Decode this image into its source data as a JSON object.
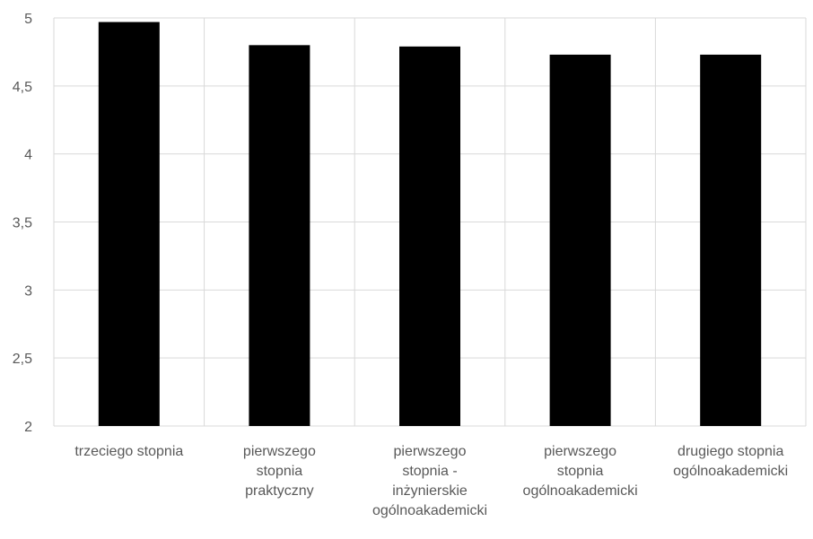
{
  "chart_data": {
    "type": "bar",
    "categories": [
      "trzeciego stopnia",
      "pierwszego stopnia praktyczny",
      "pierwszego stopnia - inżynierskie ogólnoakademicki",
      "pierwszego stopnia ogólnoakademicki",
      "drugiego stopnia ogólnoakademicki"
    ],
    "category_label_lines": [
      [
        "trzeciego stopnia"
      ],
      [
        "pierwszego",
        "stopnia",
        "praktyczny"
      ],
      [
        "pierwszego",
        "stopnia -",
        "inżynierskie",
        "ogólnoakademicki"
      ],
      [
        "pierwszego",
        "stopnia",
        "ogólnoakademicki"
      ],
      [
        "drugiego stopnia",
        "ogólnoakademicki"
      ]
    ],
    "values": [
      4.97,
      4.8,
      4.79,
      4.73,
      4.73
    ],
    "ylim": [
      2,
      5
    ],
    "yticks": [
      2,
      2.5,
      3,
      3.5,
      4,
      4.5,
      5
    ],
    "ytick_labels": [
      "2",
      "2,5",
      "3",
      "3,5",
      "4",
      "4,5",
      "5"
    ],
    "title": "",
    "xlabel": "",
    "ylabel": "",
    "grid": true,
    "legend": false,
    "bar_color": "#000000",
    "grid_color": "#d9d9d9",
    "text_color": "#595959"
  }
}
